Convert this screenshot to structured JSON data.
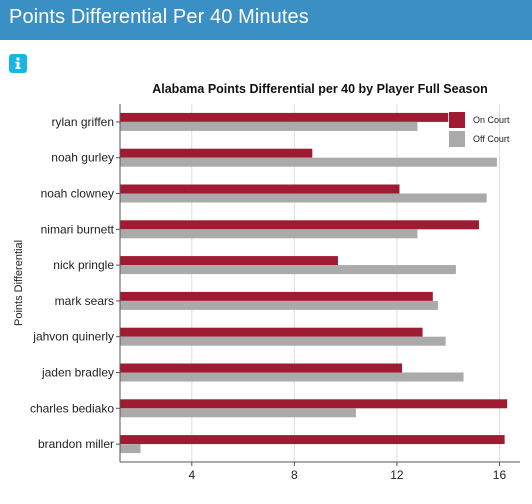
{
  "header": {
    "title": "Points Differential Per 40 Minutes"
  },
  "info_button": {
    "icon": "info-icon",
    "color": "#19b5e6"
  },
  "colors": {
    "header_bg": "#3a8fc4",
    "on_court": "#9e1b32",
    "off_court": "#aaaaaa"
  },
  "chart_data": {
    "type": "bar",
    "orientation": "horizontal",
    "title": "Alabama Points Differential per 40 by Player Full Season",
    "xlabel": "",
    "ylabel": "Points Differential",
    "xlim": [
      1.2,
      16.8
    ],
    "xticks": [
      4,
      8,
      12,
      16
    ],
    "grid": true,
    "legend_position": "top-right",
    "categories": [
      "rylan griffen",
      "noah gurley",
      "noah clowney",
      "nimari burnett",
      "nick pringle",
      "mark sears",
      "jahvon quinerly",
      "jaden bradley",
      "charles bediako",
      "brandon miller"
    ],
    "series": [
      {
        "name": "On Court",
        "color": "#9e1b32",
        "values": [
          14.0,
          8.7,
          12.1,
          15.2,
          9.7,
          13.4,
          13.0,
          12.2,
          16.3,
          16.2
        ]
      },
      {
        "name": "Off Court",
        "color": "#aaaaaa",
        "values": [
          12.8,
          15.9,
          15.5,
          12.8,
          14.3,
          13.6,
          13.9,
          14.6,
          10.4,
          2.0
        ]
      }
    ]
  }
}
